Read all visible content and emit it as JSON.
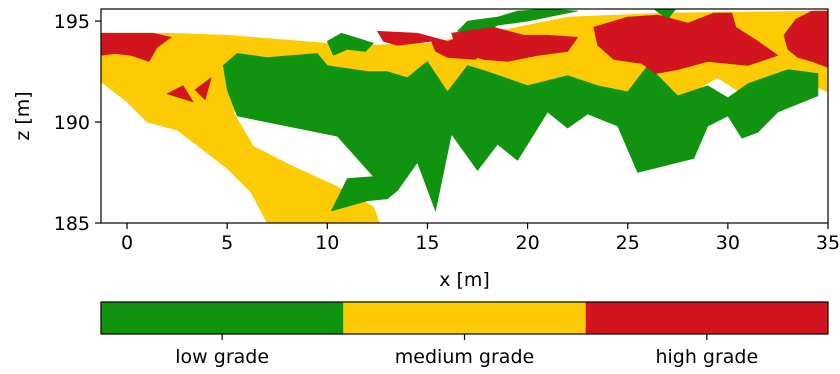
{
  "chart_data": {
    "type": "heatmap",
    "title": "",
    "xlabel": "x [m]",
    "ylabel": "z [m]",
    "xlim": [
      -1.3,
      35
    ],
    "ylim": [
      185,
      195.6
    ],
    "x_ticks": [
      "0",
      "5",
      "10",
      "15",
      "20",
      "25",
      "30",
      "35"
    ],
    "x_tick_values": [
      0,
      5,
      10,
      15,
      20,
      25,
      30,
      35
    ],
    "y_ticks": [
      "185",
      "190",
      "195"
    ],
    "y_tick_values": [
      185,
      190,
      195
    ],
    "grid": false,
    "legend": "colorbar-bottom",
    "categories": [
      "low grade",
      "medium grade",
      "high grade"
    ],
    "colors": {
      "low grade": "#10930f",
      "medium grade": "#fdcb04",
      "high grade": "#d2141e"
    },
    "regions": [
      {
        "class": "medium grade",
        "polygon": [
          [
            -1.3,
            194.4
          ],
          [
            2,
            194.4
          ],
          [
            5,
            194.3
          ],
          [
            10,
            193.9
          ],
          [
            12,
            193.8
          ],
          [
            15,
            193.9
          ],
          [
            19,
            194.6
          ],
          [
            22,
            195.2
          ],
          [
            27,
            195.4
          ],
          [
            35,
            195.5
          ],
          [
            35,
            191.5
          ],
          [
            33,
            192.3
          ],
          [
            31,
            191.2
          ],
          [
            29.5,
            192.2
          ],
          [
            27,
            190.8
          ],
          [
            24.5,
            191.4
          ],
          [
            20,
            190.9
          ],
          [
            17,
            190.9
          ],
          [
            14,
            191.8
          ],
          [
            11,
            191.3
          ],
          [
            9,
            192.2
          ],
          [
            7,
            191.4
          ],
          [
            5.3,
            190.5
          ],
          [
            6.3,
            188.8
          ],
          [
            8.3,
            187.8
          ],
          [
            10.5,
            186.8
          ],
          [
            12.3,
            185.8
          ],
          [
            12.6,
            185
          ],
          [
            7,
            185
          ],
          [
            6.2,
            186.5
          ],
          [
            5,
            187.7
          ],
          [
            3.7,
            188.7
          ],
          [
            2.5,
            189.6
          ],
          [
            1,
            190
          ],
          [
            0,
            191
          ],
          [
            -1.3,
            192
          ]
        ]
      },
      {
        "class": "low grade",
        "polygon": [
          [
            5.5,
            193.4
          ],
          [
            7,
            193.2
          ],
          [
            9.5,
            193.4
          ],
          [
            10,
            192.8
          ],
          [
            12,
            192.5
          ],
          [
            13,
            192.5
          ],
          [
            14,
            192.2
          ],
          [
            15,
            193
          ],
          [
            16,
            191.5
          ],
          [
            17,
            192.8
          ],
          [
            18,
            192.5
          ],
          [
            20,
            191.8
          ],
          [
            22,
            192.3
          ],
          [
            23.5,
            191.8
          ],
          [
            25,
            191.5
          ],
          [
            26,
            192.8
          ],
          [
            27.5,
            191.3
          ],
          [
            29,
            191.8
          ],
          [
            30,
            191.2
          ],
          [
            31,
            191.9
          ],
          [
            33,
            192.6
          ],
          [
            34.5,
            192.4
          ],
          [
            34.5,
            191.3
          ],
          [
            32.5,
            190.5
          ],
          [
            31.5,
            189.5
          ],
          [
            30.7,
            189.2
          ],
          [
            30,
            190.3
          ],
          [
            29,
            189.8
          ],
          [
            28.3,
            188.2
          ],
          [
            25.5,
            187.5
          ],
          [
            24.5,
            189.8
          ],
          [
            23,
            190.4
          ],
          [
            22,
            189.7
          ],
          [
            21,
            190.5
          ],
          [
            19.5,
            188.1
          ],
          [
            18.5,
            188.9
          ],
          [
            17.5,
            187.6
          ],
          [
            16.2,
            189.4
          ],
          [
            15.4,
            185.6
          ],
          [
            14.5,
            188
          ],
          [
            13.5,
            186.6
          ],
          [
            13,
            186.2
          ],
          [
            12,
            186.1
          ],
          [
            10.2,
            185.6
          ],
          [
            11,
            187.2
          ],
          [
            12.3,
            187.3
          ],
          [
            10.5,
            189.3
          ],
          [
            7.5,
            189.9
          ],
          [
            5.5,
            190.3
          ],
          [
            5,
            191.6
          ],
          [
            4.8,
            192.8
          ]
        ]
      },
      {
        "class": "low grade",
        "polygon": [
          [
            10,
            194
          ],
          [
            10.7,
            194.4
          ],
          [
            11.7,
            194.1
          ],
          [
            12.3,
            193.9
          ],
          [
            11.9,
            193.5
          ],
          [
            11,
            193.6
          ],
          [
            10.3,
            193.3
          ]
        ]
      },
      {
        "class": "low grade",
        "polygon": [
          [
            16.5,
            194.5
          ],
          [
            17,
            195
          ],
          [
            18.5,
            195.2
          ],
          [
            19.5,
            195.5
          ],
          [
            21,
            195.6
          ],
          [
            22.5,
            195.5
          ],
          [
            20,
            195
          ],
          [
            18.5,
            194.8
          ],
          [
            17.5,
            194.2
          ]
        ]
      },
      {
        "class": "low grade",
        "polygon": [
          [
            26.3,
            195.6
          ],
          [
            27,
            195.1
          ],
          [
            27.4,
            195.6
          ]
        ]
      },
      {
        "class": "high grade",
        "polygon": [
          [
            -1.3,
            194.4
          ],
          [
            1.3,
            194.4
          ],
          [
            2.2,
            194.2
          ],
          [
            1.5,
            193.7
          ],
          [
            1.1,
            193
          ],
          [
            0.2,
            193.3
          ],
          [
            -0.6,
            193.4
          ],
          [
            -1.3,
            193.3
          ]
        ]
      },
      {
        "class": "high grade",
        "polygon": [
          [
            12.5,
            194.5
          ],
          [
            14.5,
            194.4
          ],
          [
            16,
            194
          ],
          [
            17,
            194.3
          ],
          [
            17.8,
            193.6
          ],
          [
            17.4,
            193.1
          ],
          [
            16,
            193.2
          ],
          [
            15.4,
            193.5
          ],
          [
            15.2,
            194
          ],
          [
            13.5,
            193.8
          ],
          [
            12.8,
            194
          ]
        ]
      },
      {
        "class": "high grade",
        "polygon": [
          [
            16.2,
            194.4
          ],
          [
            18.3,
            194.7
          ],
          [
            19.8,
            194.3
          ],
          [
            21,
            194.3
          ],
          [
            22.5,
            194.2
          ],
          [
            22,
            193.5
          ],
          [
            20.5,
            193.3
          ],
          [
            19,
            193
          ],
          [
            17.8,
            193.1
          ],
          [
            16.5,
            193.5
          ]
        ]
      },
      {
        "class": "high grade",
        "polygon": [
          [
            23.3,
            194.7
          ],
          [
            25,
            195.2
          ],
          [
            26.5,
            195.3
          ],
          [
            28,
            194.9
          ],
          [
            29.3,
            195.4
          ],
          [
            30.2,
            195.4
          ],
          [
            30.4,
            194.7
          ],
          [
            31.5,
            194
          ],
          [
            32.5,
            193.3
          ],
          [
            31,
            192.8
          ],
          [
            29,
            193
          ],
          [
            27.5,
            192.6
          ],
          [
            26.4,
            192.4
          ],
          [
            25.7,
            192.9
          ],
          [
            24.3,
            193.1
          ],
          [
            23.5,
            193.8
          ]
        ]
      },
      {
        "class": "high grade",
        "polygon": [
          [
            32.8,
            194.3
          ],
          [
            33.4,
            195.1
          ],
          [
            34.2,
            195.5
          ],
          [
            35,
            195.5
          ],
          [
            35,
            192.7
          ],
          [
            34.2,
            193
          ],
          [
            33.5,
            193.2
          ],
          [
            33,
            193.6
          ]
        ]
      },
      {
        "class": "high grade",
        "polygon": [
          [
            2,
            191.4
          ],
          [
            2.8,
            191.8
          ],
          [
            3.3,
            191
          ]
        ]
      },
      {
        "class": "high grade",
        "polygon": [
          [
            3.4,
            191.6
          ],
          [
            4.2,
            192.2
          ],
          [
            3.9,
            191.1
          ]
        ]
      }
    ],
    "colorbar": {
      "labels": [
        "low grade",
        "medium grade",
        "high grade"
      ]
    }
  }
}
